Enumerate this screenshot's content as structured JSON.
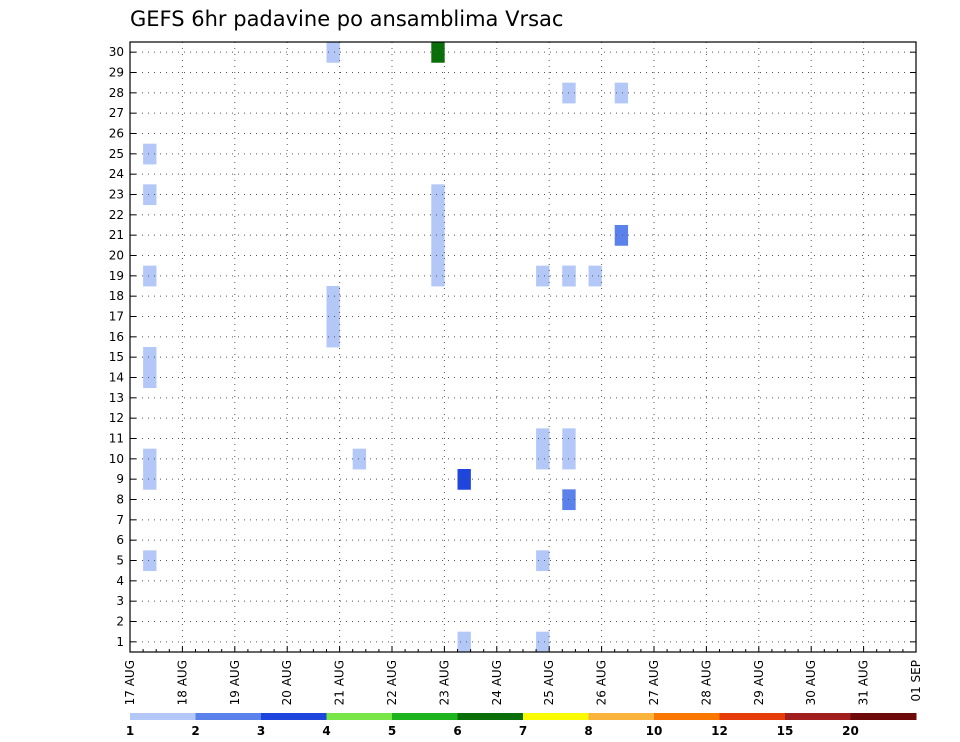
{
  "chart_data": {
    "type": "heatmap",
    "title": "GEFS 6hr padavine po ansamblima Vrsac",
    "xlabel": "",
    "ylabel": "",
    "x_tick_labels": [
      "17 AUG",
      "18 AUG",
      "19 AUG",
      "20 AUG",
      "21 AUG",
      "22 AUG",
      "23 AUG",
      "24 AUG",
      "25 AUG",
      "26 AUG",
      "27 AUG",
      "28 AUG",
      "29 AUG",
      "30 AUG",
      "31 AUG",
      "01 SEP"
    ],
    "y_tick_labels": [
      "1",
      "2",
      "3",
      "4",
      "5",
      "6",
      "7",
      "8",
      "9",
      "10",
      "11",
      "12",
      "13",
      "14",
      "15",
      "16",
      "17",
      "18",
      "19",
      "20",
      "21",
      "22",
      "23",
      "24",
      "25",
      "26",
      "27",
      "28",
      "29",
      "30"
    ],
    "xlim": [
      0,
      60
    ],
    "ylim": [
      0.5,
      30.5
    ],
    "x_unit": "6-hour steps from 17 AUG 00Z",
    "grid": true,
    "colorbar_labels": [
      "1",
      "2",
      "3",
      "4",
      "5",
      "6",
      "7",
      "8",
      "10",
      "12",
      "15",
      "20"
    ],
    "colorbar_colors": [
      "#b4c8f8",
      "#5a82ea",
      "#1e46dc",
      "#78e646",
      "#1eb41e",
      "#0a6e0a",
      "#fafa00",
      "#fab43c",
      "#fa7800",
      "#e63c0a",
      "#a01e1e",
      "#6e0a0a"
    ],
    "cells": [
      {
        "m": 30,
        "t": [
          [
            3.75,
            1
          ],
          [
            5.75,
            6
          ],
          [
            18.25,
            1
          ],
          [
            26.25,
            2
          ],
          [
            26.75,
            6
          ],
          [
            27.25,
            2
          ]
        ]
      },
      {
        "m": 28,
        "t": [
          [
            8.25,
            1
          ],
          [
            9.25,
            1
          ]
        ]
      },
      {
        "m": 27,
        "t": [
          [
            17.75,
            1
          ],
          [
            25.25,
            1
          ],
          [
            27.25,
            1
          ],
          [
            27.75,
            12
          ],
          [
            28.25,
            4
          ],
          [
            28.75,
            1
          ],
          [
            29.25,
            2
          ]
        ]
      },
      {
        "m": 26,
        "t": [
          [
            18.25,
            2
          ]
        ]
      },
      {
        "m": 25,
        "t": [
          [
            0.25,
            1
          ],
          [
            18.75,
            2
          ],
          [
            20.25,
            1
          ],
          [
            23.75,
            1
          ],
          [
            24.25,
            9
          ],
          [
            24.75,
            9
          ],
          [
            25.25,
            8
          ],
          [
            25.75,
            4
          ],
          [
            26.25,
            7
          ],
          [
            26.75,
            1
          ],
          [
            27.25,
            1
          ],
          [
            29.25,
            2
          ],
          [
            29.75,
            3
          ]
        ]
      },
      {
        "m": 23,
        "t": [
          [
            0.25,
            1
          ],
          [
            5.75,
            1
          ],
          [
            18.25,
            2
          ],
          [
            18.75,
            1
          ],
          [
            25.75,
            1
          ],
          [
            29.75,
            2
          ]
        ]
      },
      {
        "m": 22,
        "t": [
          [
            5.75,
            1
          ],
          [
            25.25,
            1
          ]
        ]
      },
      {
        "m": 21,
        "t": [
          [
            5.75,
            1
          ],
          [
            9.25,
            2
          ],
          [
            17.75,
            1
          ],
          [
            18.25,
            2
          ],
          [
            18.75,
            1
          ],
          [
            19.25,
            1
          ],
          [
            19.75,
            3
          ],
          [
            26.25,
            1
          ]
        ]
      },
      {
        "m": 20,
        "t": [
          [
            5.75,
            1
          ],
          [
            18.25,
            1
          ],
          [
            18.75,
            1
          ],
          [
            26.25,
            1
          ]
        ]
      },
      {
        "m": 19,
        "t": [
          [
            0.25,
            1
          ],
          [
            5.75,
            1
          ],
          [
            7.75,
            1
          ],
          [
            8.25,
            1
          ],
          [
            8.75,
            1
          ],
          [
            8.25,
            1
          ],
          [
            20.75,
            2
          ],
          [
            22.25,
            3
          ]
        ]
      },
      {
        "m": 18,
        "t": [
          [
            3.75,
            1
          ],
          [
            20.75,
            2
          ],
          [
            22.25,
            3
          ]
        ]
      },
      {
        "m": 17,
        "t": [
          [
            3.75,
            1
          ],
          [
            20.25,
            1
          ],
          [
            24.25,
            7
          ]
        ]
      },
      {
        "m": 16,
        "t": [
          [
            3.75,
            1
          ],
          [
            20.25,
            1
          ],
          [
            24.25,
            7
          ]
        ]
      },
      {
        "m": 15,
        "t": [
          [
            0.25,
            1
          ]
        ]
      },
      {
        "m": 14,
        "t": [
          [
            0.25,
            1
          ]
        ]
      },
      {
        "m": 12,
        "t": [
          [
            21.75,
            10
          ],
          [
            22.25,
            2
          ]
        ]
      },
      {
        "m": 11,
        "t": [
          [
            7.75,
            1
          ],
          [
            8.25,
            1
          ]
        ]
      },
      {
        "m": 10,
        "t": [
          [
            0.25,
            1
          ],
          [
            4.25,
            1
          ],
          [
            7.75,
            1
          ],
          [
            8.25,
            1
          ],
          [
            22.25,
            2
          ],
          [
            23.75,
            1
          ],
          [
            24.25,
            2
          ],
          [
            24.75,
            3
          ],
          [
            25.75,
            1
          ],
          [
            26.25,
            8
          ],
          [
            27.25,
            1
          ],
          [
            27.75,
            1
          ]
        ]
      },
      {
        "m": 9,
        "t": [
          [
            0.25,
            1
          ],
          [
            6.25,
            3
          ]
        ]
      },
      {
        "m": 8,
        "t": [
          [
            8.25,
            2
          ],
          [
            16.25,
            1
          ],
          [
            17.25,
            4
          ],
          [
            17.75,
            6
          ],
          [
            18.25,
            6
          ],
          [
            18.75,
            1
          ]
        ]
      },
      {
        "m": 7,
        "t": [
          [
            20.25,
            2
          ],
          [
            22.25,
            5
          ],
          [
            22.75,
            2
          ],
          [
            23.25,
            1
          ],
          [
            23.75,
            2
          ],
          [
            24.25,
            2
          ]
        ]
      },
      {
        "m": 6,
        "t": [
          [
            18.25,
            1
          ],
          [
            23.75,
            1
          ]
        ]
      },
      {
        "m": 5,
        "t": [
          [
            0.25,
            1
          ],
          [
            7.75,
            1
          ],
          [
            23.75,
            1
          ],
          [
            24.25,
            1
          ],
          [
            25.25,
            1
          ]
        ]
      },
      {
        "m": 4,
        "t": [
          [
            18.25,
            1
          ]
        ]
      },
      {
        "m": 3,
        "t": [
          [
            20.75,
            1
          ],
          [
            21.75,
            2
          ],
          [
            26.25,
            2
          ],
          [
            28.75,
            1
          ]
        ]
      },
      {
        "m": 2,
        "t": [
          [
            17.25,
            4
          ],
          [
            21.25,
            1
          ],
          [
            21.75,
            1
          ]
        ]
      },
      {
        "m": 1,
        "t": [
          [
            6.25,
            1
          ],
          [
            7.75,
            1
          ],
          [
            18.25,
            1
          ],
          [
            26.25,
            9
          ],
          [
            26.75,
            6
          ],
          [
            27.25,
            1
          ]
        ]
      }
    ],
    "extra_cells": [
      {
        "m": 1,
        "t": [
          [
            6.25,
            1
          ]
        ],
        "note": "bottom overflow"
      }
    ]
  }
}
